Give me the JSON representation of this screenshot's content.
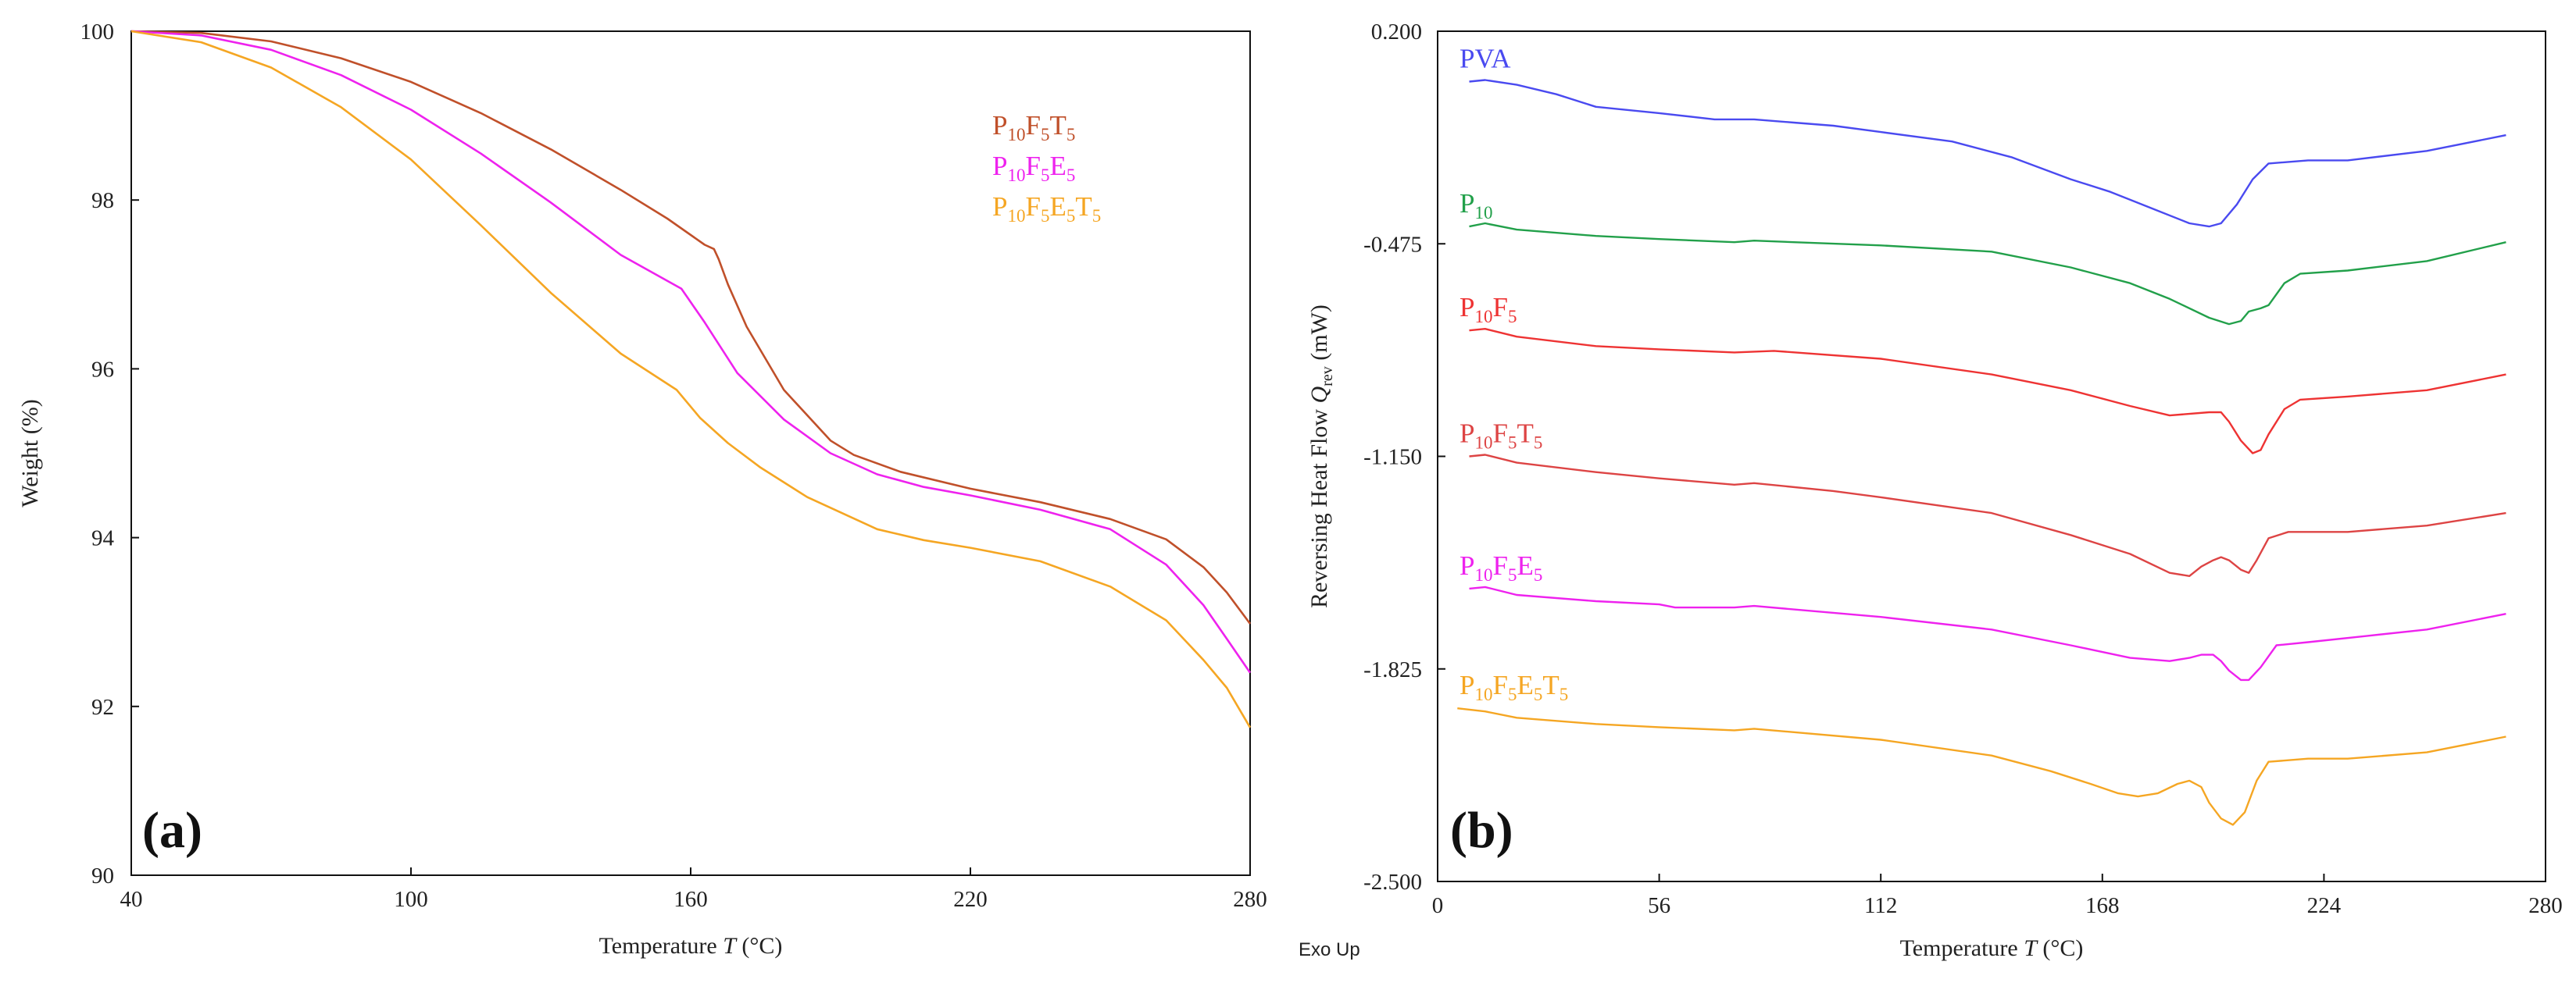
{
  "chart_data": [
    {
      "panel_label": "(a)",
      "type": "line",
      "xlabel": "Temperature",
      "xlabel_symbol": "T",
      "xlabel_unit": "(°C)",
      "ylabel": "Weight  (%)",
      "xlim": [
        40,
        280
      ],
      "ylim": [
        90,
        100
      ],
      "xticks": [
        "40",
        "100",
        "160",
        "220",
        "280"
      ],
      "yticks": [
        "90",
        "92",
        "94",
        "96",
        "98",
        "100"
      ],
      "legend_position": "top-right",
      "series": [
        {
          "name": "P10F5T5",
          "label_parts": [
            "P",
            "10",
            "F",
            "5",
            "T",
            "5"
          ],
          "color": "#c0502a",
          "x": [
            40,
            55,
            70,
            85,
            100,
            115,
            130,
            145,
            155,
            163,
            165,
            166,
            168,
            172,
            180,
            190,
            195,
            205,
            220,
            235,
            250,
            262,
            270,
            275,
            280
          ],
          "y": [
            100,
            99.98,
            99.88,
            99.68,
            99.4,
            99.03,
            98.6,
            98.12,
            97.78,
            97.47,
            97.42,
            97.3,
            97.0,
            96.5,
            95.75,
            95.15,
            94.98,
            94.78,
            94.58,
            94.42,
            94.22,
            93.98,
            93.65,
            93.35,
            92.98
          ]
        },
        {
          "name": "P10F5E5",
          "label_parts": [
            "P",
            "10",
            "F",
            "5",
            "E",
            "5"
          ],
          "color": "#ee22ee",
          "x": [
            40,
            55,
            70,
            85,
            100,
            115,
            130,
            145,
            158,
            163,
            170,
            180,
            190,
            200,
            210,
            220,
            235,
            250,
            262,
            270,
            275,
            280
          ],
          "y": [
            100,
            99.95,
            99.78,
            99.48,
            99.07,
            98.55,
            97.97,
            97.35,
            96.95,
            96.55,
            95.95,
            95.4,
            95.0,
            94.75,
            94.6,
            94.5,
            94.33,
            94.1,
            93.68,
            93.2,
            92.8,
            92.4
          ]
        },
        {
          "name": "P10F5E5T5",
          "label_parts": [
            "P",
            "10",
            "F",
            "5",
            "E",
            "5",
            "T",
            "5"
          ],
          "color": "#f5a623",
          "x": [
            40,
            55,
            70,
            85,
            100,
            115,
            130,
            145,
            157,
            162,
            168,
            175,
            185,
            200,
            210,
            220,
            235,
            250,
            262,
            270,
            275,
            280
          ],
          "y": [
            100,
            99.87,
            99.57,
            99.1,
            98.48,
            97.7,
            96.9,
            96.18,
            95.75,
            95.42,
            95.12,
            94.83,
            94.48,
            94.1,
            93.97,
            93.88,
            93.72,
            93.42,
            93.02,
            92.55,
            92.22,
            91.75
          ]
        }
      ]
    },
    {
      "panel_label": "(b)",
      "type": "line",
      "xlabel": "Temperature",
      "xlabel_symbol": "T",
      "xlabel_unit": "(°C)",
      "ylabel_text": "Reversing Heat Flow",
      "ylabel_symbol": "Q",
      "ylabel_sub": "rev",
      "ylabel_unit": "(mW)",
      "annotation": "Exo Up",
      "xlim": [
        0,
        280
      ],
      "ylim": [
        -2.5,
        0.2
      ],
      "xticks": [
        "0",
        "56",
        "112",
        "168",
        "224",
        "280"
      ],
      "yticks": [
        "0.200",
        "-0.475",
        "-1.150",
        "-1.825",
        "-2.500"
      ],
      "series": [
        {
          "name": "PVA",
          "label_parts": [
            "PVA"
          ],
          "color": "#4a4af0",
          "x": [
            8,
            12,
            20,
            30,
            40,
            56,
            70,
            80,
            90,
            100,
            112,
            130,
            145,
            160,
            170,
            180,
            190,
            195,
            198,
            202,
            206,
            210,
            220,
            230,
            250,
            270
          ],
          "y": [
            0.04,
            0.045,
            0.03,
            0.0,
            -0.04,
            -0.06,
            -0.08,
            -0.08,
            -0.09,
            -0.1,
            -0.12,
            -0.15,
            -0.2,
            -0.27,
            -0.31,
            -0.36,
            -0.41,
            -0.42,
            -0.41,
            -0.35,
            -0.27,
            -0.22,
            -0.21,
            -0.21,
            -0.18,
            -0.13
          ]
        },
        {
          "name": "P10",
          "label_parts": [
            "P",
            "10"
          ],
          "color": "#22a04a",
          "x": [
            8,
            12,
            20,
            40,
            56,
            75,
            80,
            90,
            112,
            140,
            160,
            175,
            185,
            195,
            200,
            203,
            205,
            208,
            210,
            214,
            218,
            230,
            250,
            270
          ],
          "y": [
            -0.42,
            -0.41,
            -0.43,
            -0.45,
            -0.46,
            -0.47,
            -0.465,
            -0.47,
            -0.48,
            -0.5,
            -0.55,
            -0.6,
            -0.65,
            -0.71,
            -0.73,
            -0.72,
            -0.69,
            -0.68,
            -0.67,
            -0.6,
            -0.57,
            -0.56,
            -0.53,
            -0.47
          ]
        },
        {
          "name": "P10F5",
          "label_parts": [
            "P",
            "10",
            "F",
            "5"
          ],
          "color": "#ee3333",
          "x": [
            8,
            12,
            20,
            40,
            56,
            75,
            85,
            112,
            140,
            160,
            175,
            185,
            195,
            198,
            200,
            203,
            206,
            208,
            210,
            214,
            218,
            230,
            250,
            270
          ],
          "y": [
            -0.75,
            -0.745,
            -0.77,
            -0.8,
            -0.81,
            -0.82,
            -0.815,
            -0.84,
            -0.89,
            -0.94,
            -0.99,
            -1.02,
            -1.01,
            -1.01,
            -1.04,
            -1.1,
            -1.14,
            -1.13,
            -1.08,
            -1.0,
            -0.97,
            -0.96,
            -0.94,
            -0.89
          ]
        },
        {
          "name": "P10F5T5",
          "label_parts": [
            "P",
            "10",
            "F",
            "5",
            "T",
            "5"
          ],
          "color": "#dd4444",
          "x": [
            8,
            12,
            20,
            40,
            56,
            75,
            80,
            100,
            112,
            140,
            160,
            175,
            185,
            190,
            193,
            196,
            198,
            200,
            203,
            205,
            207,
            210,
            215,
            230,
            250,
            270
          ],
          "y": [
            -1.15,
            -1.145,
            -1.17,
            -1.2,
            -1.22,
            -1.24,
            -1.235,
            -1.26,
            -1.28,
            -1.33,
            -1.4,
            -1.46,
            -1.52,
            -1.53,
            -1.5,
            -1.48,
            -1.47,
            -1.48,
            -1.51,
            -1.52,
            -1.48,
            -1.41,
            -1.39,
            -1.39,
            -1.37,
            -1.33
          ]
        },
        {
          "name": "P10F5E5",
          "label_parts": [
            "P",
            "10",
            "F",
            "5",
            "E",
            "5"
          ],
          "color": "#ee22ee",
          "x": [
            8,
            12,
            20,
            40,
            56,
            60,
            75,
            80,
            112,
            140,
            160,
            175,
            185,
            190,
            193,
            196,
            198,
            200,
            203,
            205,
            208,
            212,
            220,
            235,
            250,
            270
          ],
          "y": [
            -1.57,
            -1.565,
            -1.59,
            -1.61,
            -1.62,
            -1.63,
            -1.63,
            -1.625,
            -1.66,
            -1.7,
            -1.75,
            -1.79,
            -1.8,
            -1.79,
            -1.78,
            -1.78,
            -1.8,
            -1.83,
            -1.86,
            -1.86,
            -1.82,
            -1.75,
            -1.74,
            -1.72,
            -1.7,
            -1.65
          ]
        },
        {
          "name": "P10F5E5T5",
          "label_parts": [
            "P",
            "10",
            "F",
            "5",
            "E",
            "5",
            "T",
            "5"
          ],
          "color": "#f5a623",
          "x": [
            5,
            12,
            20,
            40,
            56,
            75,
            80,
            112,
            140,
            155,
            165,
            172,
            177,
            182,
            187,
            190,
            193,
            195,
            198,
            201,
            204,
            207,
            210,
            220,
            230,
            250,
            270
          ],
          "y": [
            -1.95,
            -1.96,
            -1.98,
            -2.0,
            -2.01,
            -2.02,
            -2.015,
            -2.05,
            -2.1,
            -2.15,
            -2.19,
            -2.22,
            -2.23,
            -2.22,
            -2.19,
            -2.18,
            -2.2,
            -2.25,
            -2.3,
            -2.32,
            -2.28,
            -2.18,
            -2.12,
            -2.11,
            -2.11,
            -2.09,
            -2.04
          ]
        }
      ]
    }
  ]
}
